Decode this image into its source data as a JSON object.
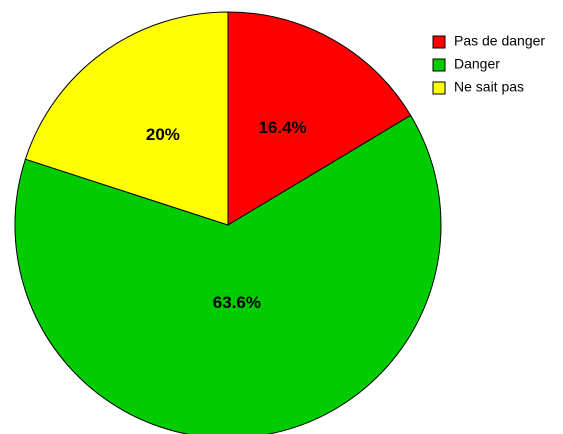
{
  "chart_data": {
    "type": "pie",
    "categories": [
      "Pas de danger",
      "Danger",
      "Ne sait pas"
    ],
    "values": [
      16.4,
      63.6,
      20
    ],
    "value_labels": [
      "16.4%",
      "63.6%",
      "20%"
    ],
    "colors": [
      "#ff0000",
      "#00cc00",
      "#ffff00"
    ],
    "legend": "top-right"
  }
}
